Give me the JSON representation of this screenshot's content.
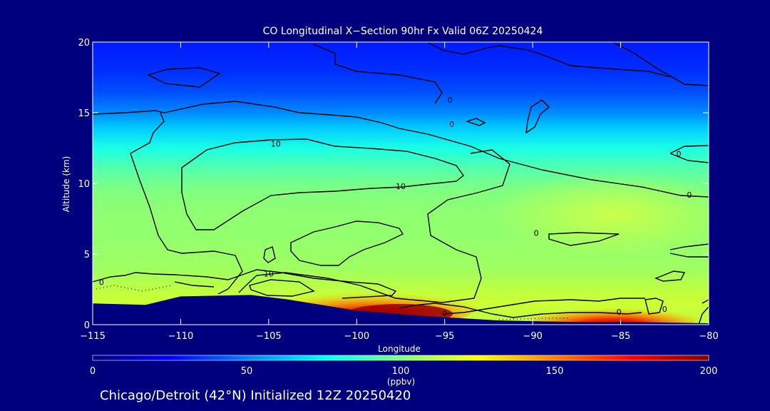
{
  "chart_data": {
    "type": "heatmap",
    "title": "CO Longitudinal X−Section 90hr  Fx Valid 06Z 20250424",
    "subtitle": "Chicago/Detroit (42°N) Initialized 12Z 20250420",
    "xlabel": "Longitude",
    "ylabel": "Altitude (km)",
    "xlim": [
      -115,
      -80
    ],
    "ylim": [
      0,
      20
    ],
    "x_ticks": [
      -115,
      -110,
      -105,
      -100,
      -95,
      -90,
      -85,
      -80
    ],
    "x_tick_labels": [
      "−115",
      "−110",
      "−105",
      "−100",
      "−95",
      "−90",
      "−85",
      "−80"
    ],
    "y_ticks": [
      0,
      5,
      10,
      15,
      20
    ],
    "y_tick_labels": [
      "0",
      "5",
      "10",
      "15",
      "20"
    ],
    "colorbar": {
      "range": [
        0,
        200
      ],
      "ticks": [
        0,
        50,
        100,
        150,
        200
      ],
      "tick_labels": [
        "0",
        "50",
        "100",
        "150",
        "200"
      ],
      "unit": "(ppbv)",
      "colors": [
        "#00007e",
        "#0000ff",
        "#0080ff",
        "#00ffff",
        "#80ff80",
        "#ffff00",
        "#ff8000",
        "#ff0000",
        "#800000"
      ]
    },
    "field_profile": {
      "altitude_km": [
        0,
        1.5,
        2.5,
        4,
        6,
        8,
        9.5,
        11,
        12.5,
        14,
        15,
        16.5,
        18,
        20
      ],
      "co_ppbv": [
        112,
        115,
        112,
        106,
        104,
        103,
        100,
        92,
        80,
        64,
        52,
        40,
        34,
        30
      ]
    },
    "plume_core": {
      "lon_range": [
        -104,
        -86
      ],
      "alt_range_km": [
        0,
        3
      ],
      "max_ppbv": 195
    },
    "terrain_km": [
      {
        "lon": -115,
        "alt": 1.5
      },
      {
        "lon": -112,
        "alt": 1.4
      },
      {
        "lon": -110,
        "alt": 2.0
      },
      {
        "lon": -106,
        "alt": 2.1
      },
      {
        "lon": -104,
        "alt": 1.8
      },
      {
        "lon": -100,
        "alt": 1.0
      },
      {
        "lon": -96,
        "alt": 0.6
      },
      {
        "lon": -92,
        "alt": 0.3
      },
      {
        "lon": -88,
        "alt": 0.2
      },
      {
        "lon": -85,
        "alt": 0.2
      },
      {
        "lon": -80,
        "alt": 0.1
      }
    ],
    "contour_labels": [
      {
        "text": "10",
        "lon": -104.6,
        "alt": 12.8
      },
      {
        "text": "10",
        "lon": -97.5,
        "alt": 9.8
      },
      {
        "text": "10",
        "lon": -105,
        "alt": 3.6
      },
      {
        "text": "0",
        "lon": -94.6,
        "alt": 14.2
      },
      {
        "text": "0",
        "lon": -89.8,
        "alt": 6.5
      },
      {
        "text": "0",
        "lon": -94.7,
        "alt": 15.9
      },
      {
        "text": "0",
        "lon": -81.7,
        "alt": 12.1
      },
      {
        "text": "0",
        "lon": -81.1,
        "alt": 9.2
      },
      {
        "text": "0",
        "lon": -114.5,
        "alt": 3.0
      },
      {
        "text": "0",
        "lon": -85.1,
        "alt": 0.9
      },
      {
        "text": "0",
        "lon": -82.5,
        "alt": 1.1
      },
      {
        "text": "0",
        "lon": -97.5,
        "alt": 0.5
      },
      {
        "text": "0",
        "lon": -95,
        "alt": 0.8
      }
    ]
  }
}
